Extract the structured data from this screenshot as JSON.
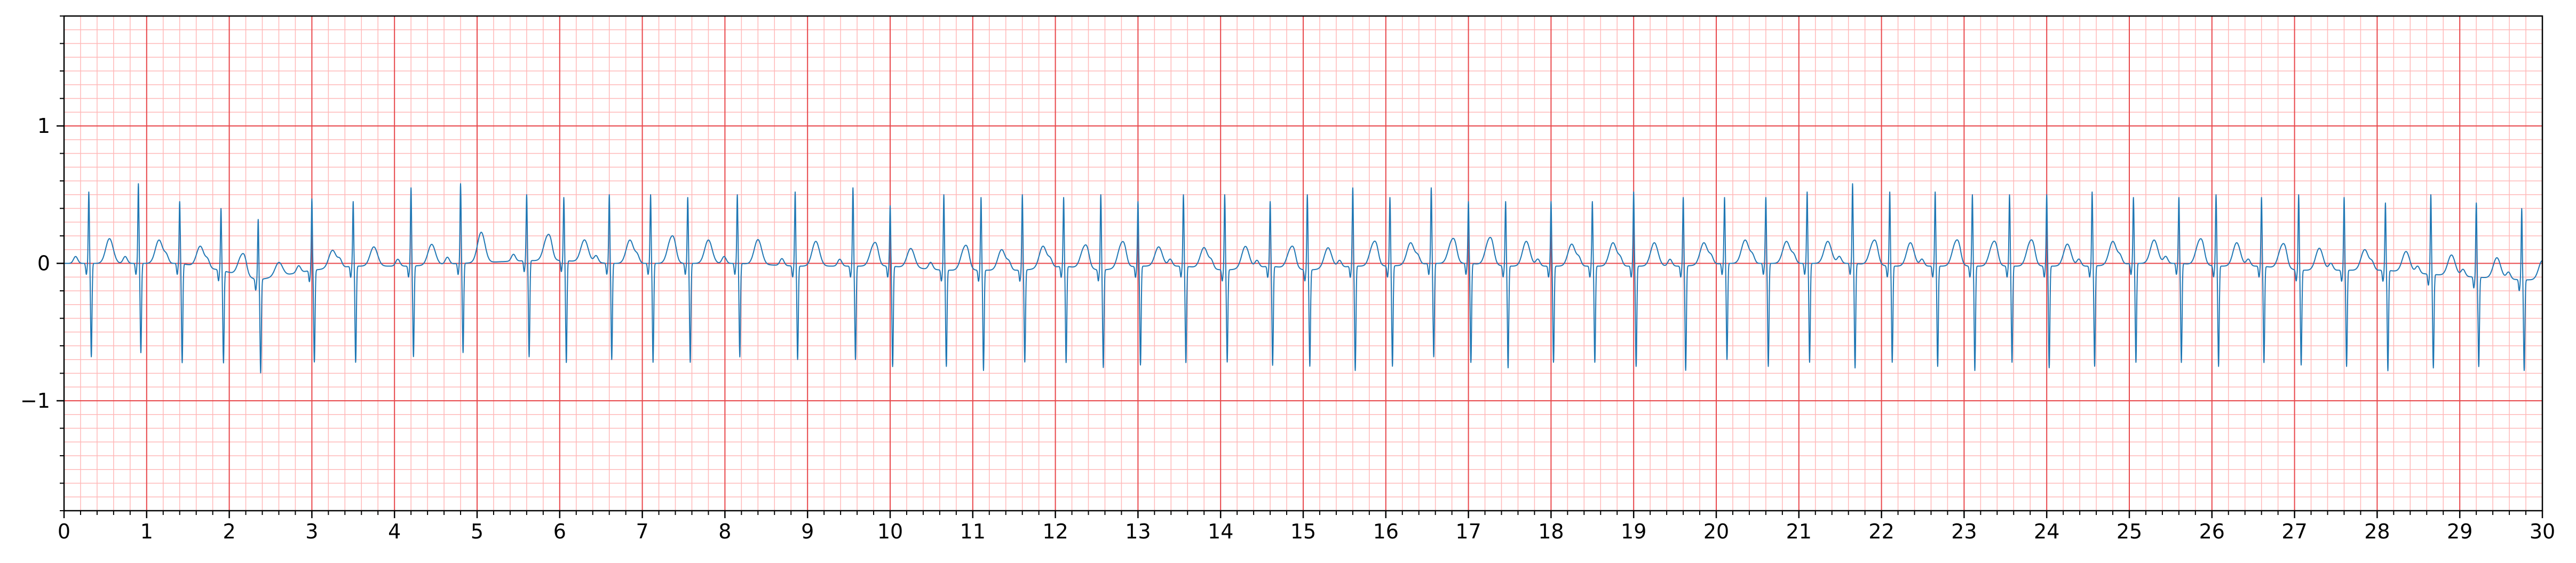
{
  "chart_data": {
    "type": "line",
    "title": "",
    "xlabel": "",
    "ylabel": "",
    "xlim": [
      0,
      30
    ],
    "ylim": [
      -1.8,
      1.8
    ],
    "x_ticks": [
      0,
      1,
      2,
      3,
      4,
      5,
      6,
      7,
      8,
      9,
      10,
      11,
      12,
      13,
      14,
      15,
      16,
      17,
      18,
      19,
      20,
      21,
      22,
      23,
      24,
      25,
      26,
      27,
      28,
      29,
      30
    ],
    "x_tick_labels": [
      "0",
      "1",
      "2",
      "3",
      "4",
      "5",
      "6",
      "7",
      "8",
      "9",
      "10",
      "11",
      "12",
      "13",
      "14",
      "15",
      "16",
      "17",
      "18",
      "19",
      "20",
      "21",
      "22",
      "23",
      "24",
      "25",
      "26",
      "27",
      "28",
      "29",
      "30"
    ],
    "y_ticks": [
      -1,
      0,
      1
    ],
    "y_tick_labels": [
      "−1",
      "0",
      "1"
    ],
    "grid": {
      "major": true,
      "minor": true,
      "major_x_step": 1,
      "major_y_step": 1,
      "minor_x_step": 0.2,
      "minor_y_step": 0.1
    },
    "colors": {
      "trace": "#1f77b4",
      "major_grid": "#e8474b",
      "minor_grid": "#ffb8b8",
      "axes": "#000000"
    },
    "series": [
      {
        "beat_times_s": [
          0.3,
          0.9,
          1.4,
          1.9,
          2.35,
          3.0,
          3.5,
          4.2,
          4.8,
          5.6,
          6.05,
          6.6,
          7.1,
          7.55,
          8.15,
          8.85,
          9.55,
          10.0,
          10.65,
          11.1,
          11.6,
          12.1,
          12.55,
          13.0,
          13.55,
          14.05,
          14.6,
          15.05,
          15.6,
          16.05,
          16.55,
          17.0,
          17.45,
          18.0,
          18.5,
          19.0,
          19.6,
          20.1,
          20.6,
          21.1,
          21.65,
          22.1,
          22.65,
          23.1,
          23.55,
          24.0,
          24.55,
          25.05,
          25.6,
          26.05,
          26.6,
          27.05,
          27.6,
          28.1,
          28.65,
          29.2,
          29.75
        ],
        "r_peak_mV": [
          0.52,
          0.58,
          0.45,
          0.4,
          0.32,
          0.47,
          0.45,
          0.55,
          0.58,
          0.5,
          0.48,
          0.5,
          0.5,
          0.48,
          0.5,
          0.52,
          0.55,
          0.42,
          0.5,
          0.48,
          0.5,
          0.48,
          0.5,
          0.45,
          0.5,
          0.5,
          0.45,
          0.5,
          0.55,
          0.48,
          0.55,
          0.45,
          0.45,
          0.45,
          0.45,
          0.52,
          0.48,
          0.48,
          0.48,
          0.52,
          0.58,
          0.52,
          0.52,
          0.5,
          0.5,
          0.5,
          0.52,
          0.48,
          0.48,
          0.5,
          0.48,
          0.5,
          0.48,
          0.44,
          0.5,
          0.44,
          0.4
        ],
        "s_trough_mV": [
          -0.68,
          -0.65,
          -0.72,
          -0.72,
          -0.8,
          -0.72,
          -0.72,
          -0.68,
          -0.65,
          -0.68,
          -0.72,
          -0.7,
          -0.72,
          -0.72,
          -0.68,
          -0.7,
          -0.7,
          -0.75,
          -0.75,
          -0.78,
          -0.72,
          -0.72,
          -0.76,
          -0.74,
          -0.72,
          -0.72,
          -0.74,
          -0.75,
          -0.78,
          -0.75,
          -0.68,
          -0.72,
          -0.76,
          -0.72,
          -0.72,
          -0.75,
          -0.78,
          -0.7,
          -0.75,
          -0.72,
          -0.76,
          -0.72,
          -0.75,
          -0.78,
          -0.72,
          -0.76,
          -0.75,
          -0.72,
          -0.72,
          -0.75,
          -0.72,
          -0.74,
          -0.75,
          -0.78,
          -0.76,
          -0.75,
          -0.78
        ],
        "t_wave_mV": [
          0.18,
          0.17,
          0.15,
          0.14,
          0.1,
          0.13,
          0.14,
          0.15,
          0.22,
          0.17,
          0.16,
          0.17,
          0.18,
          0.17,
          0.18,
          0.18,
          0.15,
          0.14,
          0.16,
          0.15,
          0.16,
          0.15,
          0.17,
          0.14,
          0.15,
          0.16,
          0.14,
          0.15,
          0.16,
          0.16,
          0.16,
          0.18,
          0.18,
          0.16,
          0.17,
          0.17,
          0.16,
          0.17,
          0.16,
          0.16,
          0.16,
          0.17,
          0.17,
          0.16,
          0.17,
          0.16,
          0.17,
          0.17,
          0.17,
          0.17,
          0.16,
          0.16,
          0.15,
          0.15,
          0.15,
          0.15,
          0.14
        ],
        "baseline_mV": [
          0.0,
          0.0,
          0.0,
          -0.05,
          -0.12,
          -0.05,
          -0.02,
          -0.02,
          0.0,
          0.02,
          0.02,
          0.0,
          0.0,
          0.0,
          0.0,
          -0.02,
          -0.02,
          -0.02,
          -0.05,
          -0.05,
          -0.05,
          -0.02,
          -0.05,
          -0.02,
          -0.02,
          -0.05,
          -0.02,
          -0.05,
          -0.02,
          -0.02,
          0.0,
          0.0,
          -0.02,
          -0.02,
          -0.02,
          -0.02,
          -0.02,
          0.0,
          0.0,
          0.0,
          0.0,
          -0.02,
          -0.02,
          -0.02,
          -0.02,
          -0.02,
          -0.02,
          0.0,
          0.0,
          -0.02,
          -0.02,
          -0.05,
          -0.05,
          -0.05,
          -0.08,
          -0.1,
          -0.12
        ]
      }
    ]
  }
}
